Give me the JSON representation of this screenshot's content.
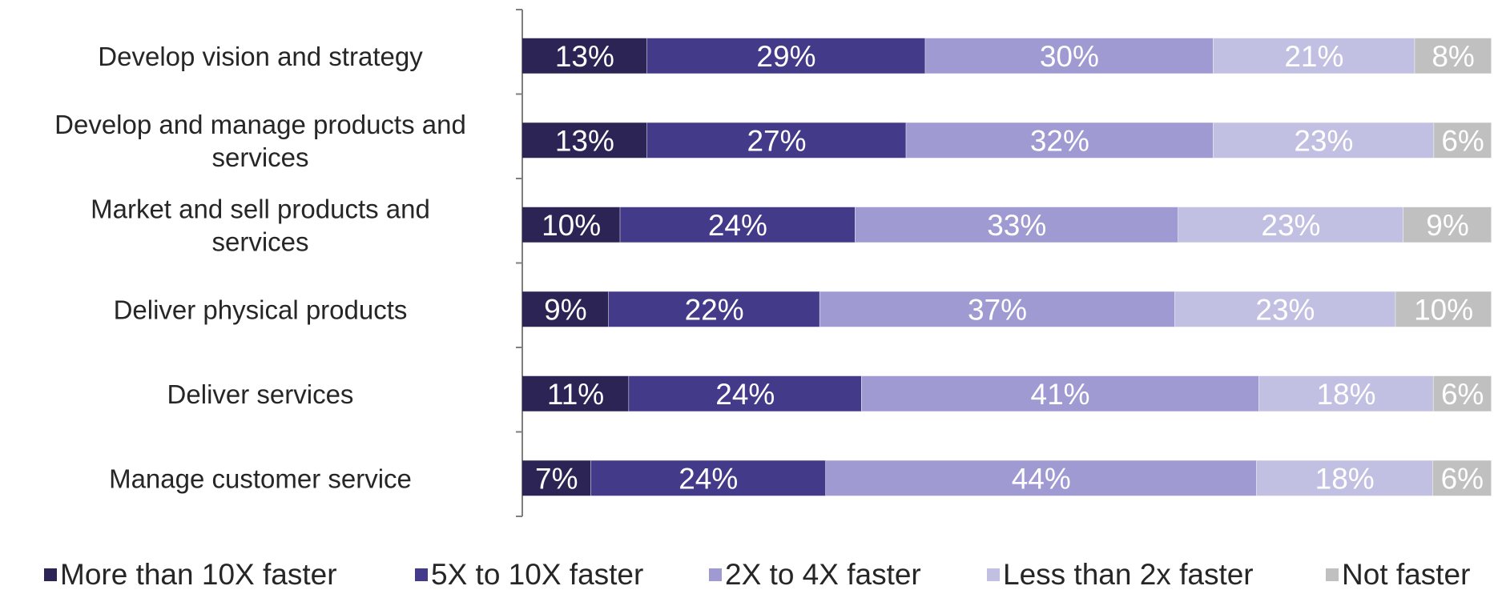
{
  "chart_data": {
    "type": "bar",
    "orientation": "horizontal",
    "stacked": true,
    "categories": [
      "Develop vision and strategy",
      "Develop and manage products and services",
      "Market and sell products and services",
      "Deliver physical products",
      "Deliver services",
      "Manage customer service"
    ],
    "series": [
      {
        "name": "More than 10X faster",
        "color": "#2b2454",
        "values": [
          13,
          13,
          10,
          9,
          11,
          7
        ]
      },
      {
        "name": "5X to 10X faster",
        "color": "#433a8a",
        "values": [
          29,
          27,
          24,
          22,
          24,
          24
        ]
      },
      {
        "name": "2X to 4X faster",
        "color": "#9f9bd2",
        "values": [
          30,
          32,
          33,
          37,
          41,
          44
        ]
      },
      {
        "name": "Less than 2x faster",
        "color": "#c2c0e2",
        "values": [
          21,
          23,
          23,
          23,
          18,
          18
        ]
      },
      {
        "name": "Not faster",
        "color": "#c0c0c0",
        "values": [
          8,
          6,
          9,
          10,
          6,
          6
        ]
      }
    ],
    "value_suffix": "%",
    "legend_position": "bottom",
    "grid": false
  }
}
